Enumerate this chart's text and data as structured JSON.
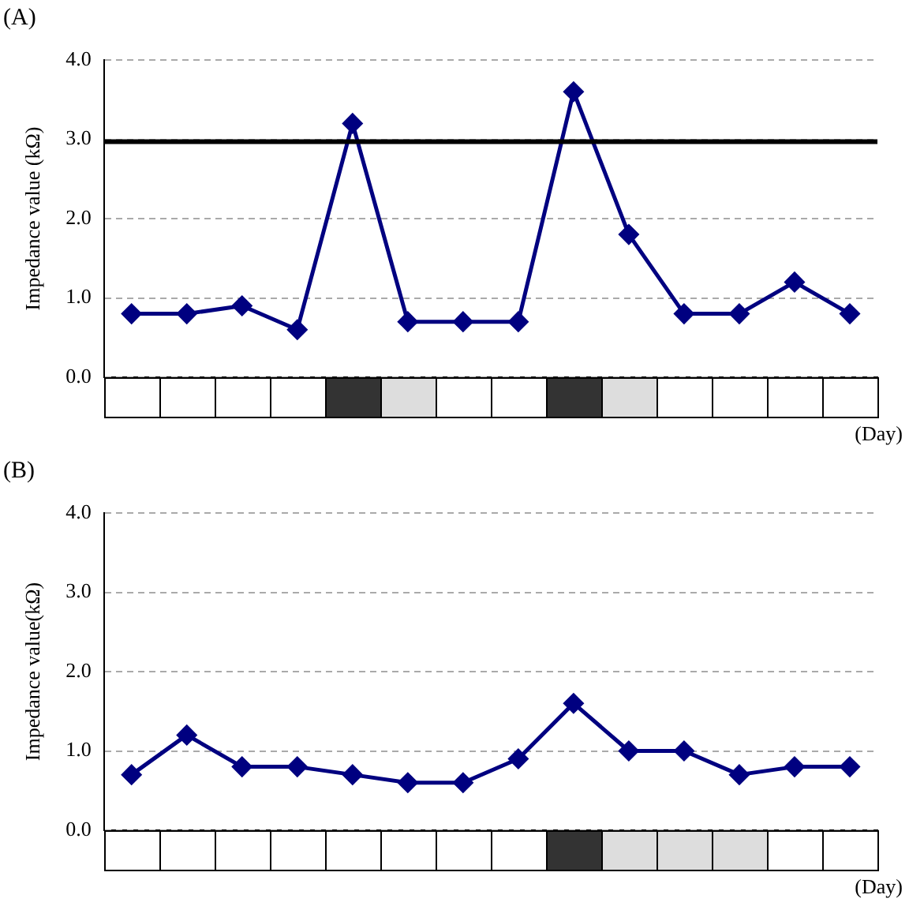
{
  "chart_data": [
    {
      "type": "line",
      "title": "(A)",
      "ylabel": "Impedance value (kΩ)",
      "xlabel": "(Day)",
      "categories": [
        null,
        null,
        null,
        null,
        null,
        null,
        null,
        null,
        null,
        null,
        null,
        null,
        null,
        null
      ],
      "series": [
        {
          "color": "#000080",
          "values": [
            0.8,
            0.8,
            0.9,
            0.6,
            3.2,
            0.7,
            0.7,
            0.7,
            3.6,
            1.8,
            0.8,
            0.8,
            1.2,
            0.8
          ]
        }
      ],
      "ylim": [
        0,
        4
      ],
      "yticks": [
        {
          "value": 0,
          "label": "0.0"
        },
        {
          "value": 1,
          "label": "1.0"
        },
        {
          "value": 2,
          "label": "2.0"
        },
        {
          "value": 3,
          "label": "3.0"
        },
        {
          "value": 4,
          "label": "4.0"
        }
      ],
      "ref_lines": [
        {
          "axis": "y",
          "value": 2.97,
          "color": "#000000"
        }
      ],
      "grid": "y",
      "marker": "diamond",
      "line_style": "solid",
      "legend": false,
      "tick_labels": "y"
    },
    {
      "type": "line",
      "title": "(B)",
      "ylabel": "Impedance value(kΩ)",
      "xlabel": "(Day)",
      "categories": [
        null,
        null,
        null,
        null,
        null,
        null,
        null,
        null,
        null,
        null,
        null,
        null,
        null,
        null
      ],
      "series": [
        {
          "color": "#000080",
          "values": [
            0.7,
            1.2,
            0.8,
            0.8,
            0.7,
            0.6,
            0.6,
            0.9,
            1.6,
            1.0,
            1.0,
            0.7,
            0.8,
            0.8
          ]
        }
      ],
      "ylim": [
        0,
        4
      ],
      "yticks": [
        {
          "value": 0,
          "label": "0.0"
        },
        {
          "value": 1,
          "label": "1.0"
        },
        {
          "value": 2,
          "label": "2.0"
        },
        {
          "value": 3,
          "label": "3.0"
        },
        {
          "value": 4,
          "label": "4.0"
        }
      ],
      "grid": "y",
      "marker": "diamond",
      "line_style": "solid",
      "legend": false,
      "tick_labels": "y"
    }
  ]
}
